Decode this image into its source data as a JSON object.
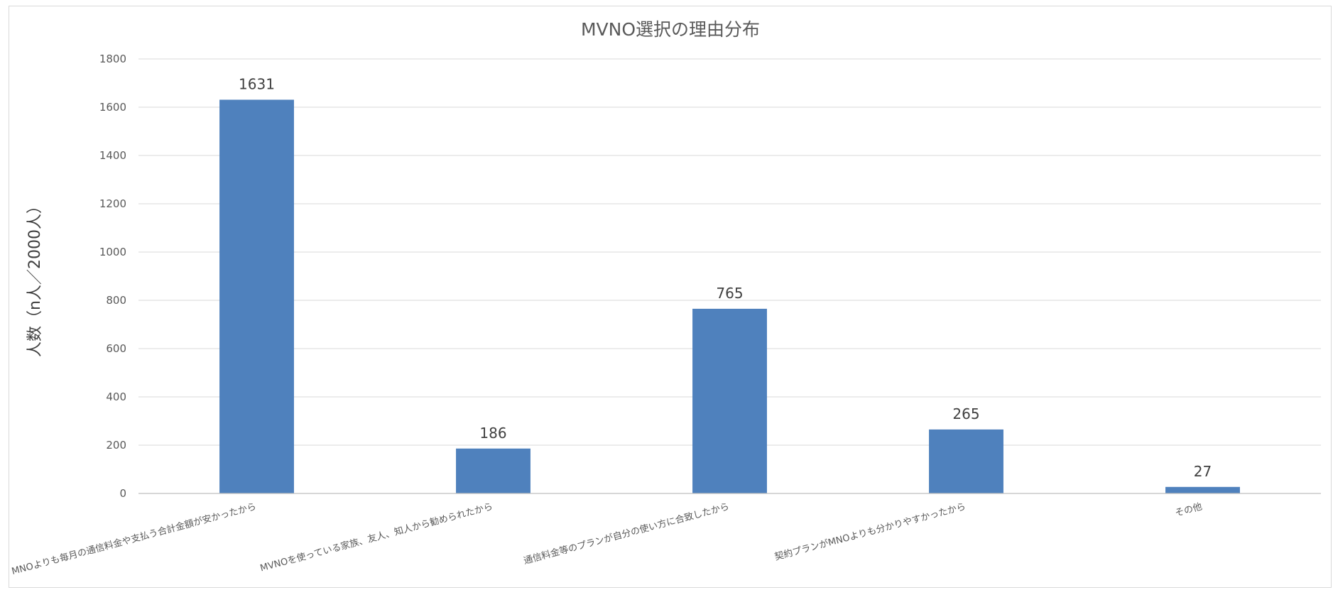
{
  "chart_data": {
    "type": "bar",
    "title": "MVNO選択の理由分布",
    "xlabel": "",
    "ylabel": "人数（n人／2000人）",
    "categories": [
      "MNOよりも毎月の通信料金や支払う合計金額が安かったから",
      "MVNOを使っている家族、友人、知人から勧められたから",
      "通信料金等のプランが自分の使い方に合致したから",
      "契約プランがMNOよりも分かりやすかったから",
      "その他"
    ],
    "values": [
      1631,
      186,
      765,
      265,
      27
    ],
    "ylim": [
      0,
      1800
    ],
    "yticks": [
      0,
      200,
      400,
      600,
      800,
      1000,
      1200,
      1400,
      1600,
      1800
    ],
    "grid": true,
    "legend": "none",
    "bar_color": "#4f81bd"
  }
}
